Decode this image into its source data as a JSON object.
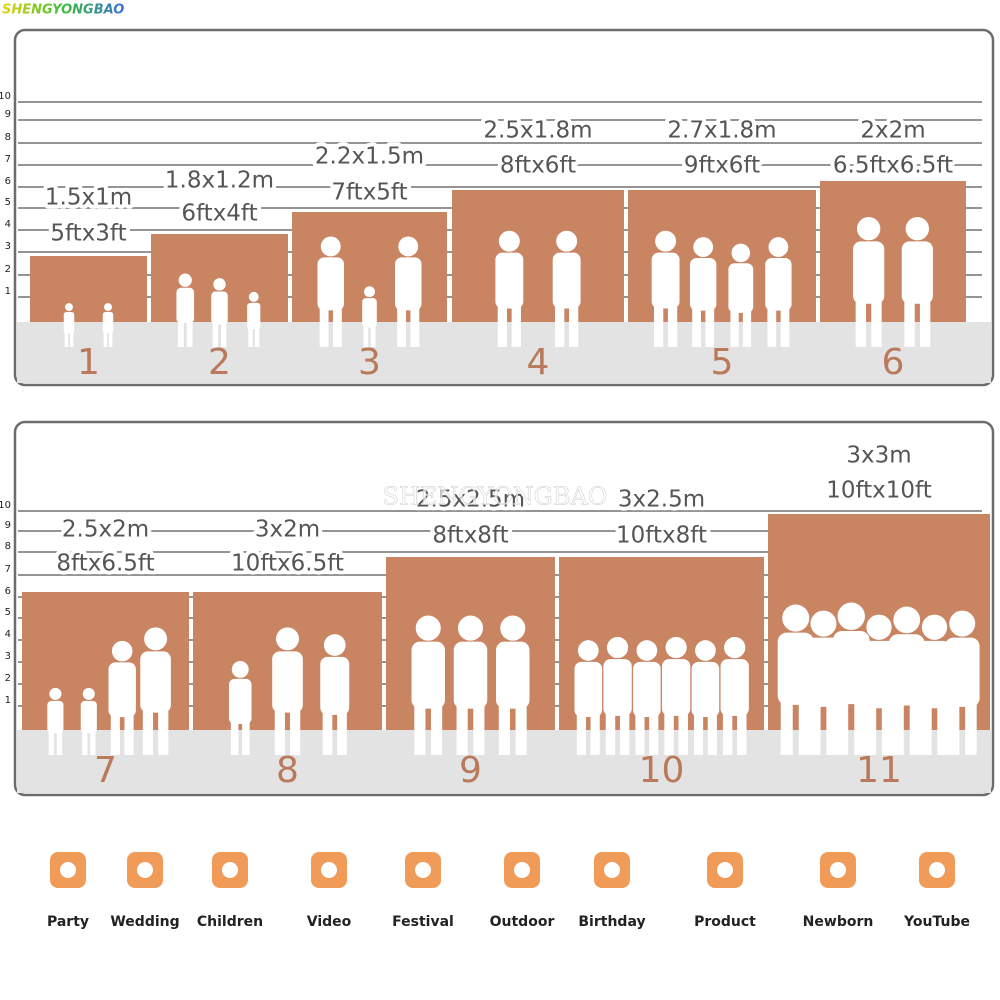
{
  "watermark": "SHENGYONGBAO",
  "panels": [
    {
      "scale": [
        1,
        2,
        3,
        4,
        5,
        6,
        7,
        8,
        9,
        10
      ],
      "items": [
        {
          "number": 1,
          "metric": "1.5x1m",
          "imperial": "5ftx3ft"
        },
        {
          "number": 2,
          "metric": "1.8x1.2m",
          "imperial": "6ftx4ft"
        },
        {
          "number": 3,
          "metric": "2.2x1.5m",
          "imperial": "7ftx5ft"
        },
        {
          "number": 4,
          "metric": "2.5x1.8m",
          "imperial": "8ftx6ft"
        },
        {
          "number": 5,
          "metric": "2.7x1.8m",
          "imperial": "9ftx6ft"
        },
        {
          "number": 6,
          "metric": "2x2m",
          "imperial": "6.5ftx6.5ft"
        }
      ]
    },
    {
      "scale": [
        1,
        2,
        3,
        4,
        5,
        6,
        7,
        8,
        9,
        10
      ],
      "items": [
        {
          "number": 7,
          "metric": "2.5x2m",
          "imperial": "8ftx6.5ft"
        },
        {
          "number": 8,
          "metric": "3x2m",
          "imperial": "10ftx6.5ft"
        },
        {
          "number": 9,
          "metric": "2.5x2.5m",
          "imperial": "8ftx8ft"
        },
        {
          "number": 10,
          "metric": "3x2.5m",
          "imperial": "10ftx8ft"
        },
        {
          "number": 11,
          "metric": "3x3m",
          "imperial": "10ftx10ft"
        }
      ]
    }
  ],
  "uses": [
    "Party",
    "Wedding",
    "Children",
    "Video",
    "Festival",
    "Outdoor",
    "Birthday",
    "Product",
    "Newborn",
    "YouTube"
  ]
}
